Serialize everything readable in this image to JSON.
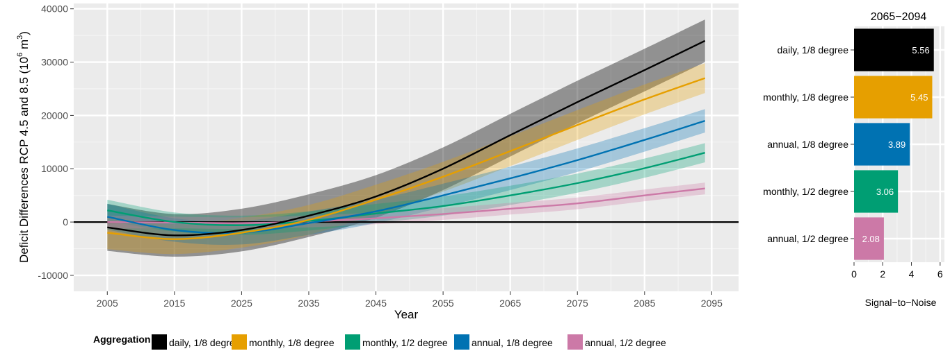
{
  "chart_data": [
    {
      "type": "line",
      "title": "",
      "xlabel": "Year",
      "ylabel": "Deficit Differences RCP 4.5 and 8.5 (10^6 m^3)",
      "ylabel_prefix": "Deficit Differences RCP 4.5 and 8.5 (10",
      "ylabel_sup1": "6",
      "ylabel_mid": " m",
      "ylabel_sup2": "3",
      "ylabel_suffix": ")",
      "xlim": [
        2000,
        2099
      ],
      "ylim": [
        -13000,
        41000
      ],
      "x_ticks": [
        "2005",
        "2015",
        "2025",
        "2035",
        "2045",
        "2055",
        "2065",
        "2075",
        "2085",
        "2095"
      ],
      "y_ticks": [
        "-10000",
        "0",
        "10000",
        "20000",
        "30000",
        "40000"
      ],
      "grid": true,
      "hline": 0,
      "x": [
        2005,
        2015,
        2025,
        2035,
        2045,
        2055,
        2065,
        2075,
        2085,
        2094
      ],
      "series": [
        {
          "name": "daily, 1/8 degree",
          "color": "#000000",
          "band": 4000,
          "values": [
            -1000,
            -2500,
            -1500,
            1200,
            4800,
            10000,
            16300,
            22500,
            28500,
            34000
          ]
        },
        {
          "name": "monthly, 1/8 degree",
          "color": "#E69F00",
          "band": 2800,
          "values": [
            -2000,
            -3200,
            -2000,
            400,
            4200,
            8500,
            13300,
            18200,
            23000,
            27000
          ]
        },
        {
          "name": "annual, 1/8 degree",
          "color": "#0072B2",
          "band": 2200,
          "values": [
            1000,
            -1500,
            -2000,
            -200,
            2000,
            5000,
            8200,
            11600,
            15400,
            19000
          ]
        },
        {
          "name": "monthly, 1/2 degree",
          "color": "#009E73",
          "band": 1800,
          "values": [
            2200,
            0,
            -600,
            200,
            1600,
            3000,
            5000,
            7300,
            10100,
            13000
          ]
        },
        {
          "name": "annual, 1/2 degree",
          "color": "#CC79A7",
          "band": 1100,
          "values": [
            0,
            -100,
            -200,
            100,
            700,
            1500,
            2500,
            3500,
            5000,
            6300
          ]
        }
      ]
    },
    {
      "type": "bar",
      "orientation": "horizontal",
      "title": "2065−2094",
      "xlabel": "Signal−to−Noise",
      "xlim": [
        0,
        6.3
      ],
      "x_ticks": [
        "0",
        "2",
        "4",
        "6"
      ],
      "categories": [
        "daily, 1/8 degree",
        "monthly, 1/8 degree",
        "annual, 1/8 degree",
        "monthly, 1/2 degree",
        "annual, 1/2 degree"
      ],
      "values": [
        5.56,
        5.45,
        3.89,
        3.06,
        2.08
      ],
      "value_labels": [
        "5.56",
        "5.45",
        "3.89",
        "3.06",
        "2.08"
      ],
      "colors": [
        "#000000",
        "#E69F00",
        "#0072B2",
        "#009E73",
        "#CC79A7"
      ]
    }
  ],
  "legend": {
    "title": "Aggregation",
    "items": [
      {
        "label": "daily, 1/8 degree",
        "color": "#000000"
      },
      {
        "label": "monthly, 1/8 degree",
        "color": "#E69F00"
      },
      {
        "label": "monthly, 1/2 degree",
        "color": "#009E73"
      },
      {
        "label": "annual, 1/8 degree",
        "color": "#0072B2"
      },
      {
        "label": "annual, 1/2 degree",
        "color": "#CC79A7"
      }
    ]
  }
}
